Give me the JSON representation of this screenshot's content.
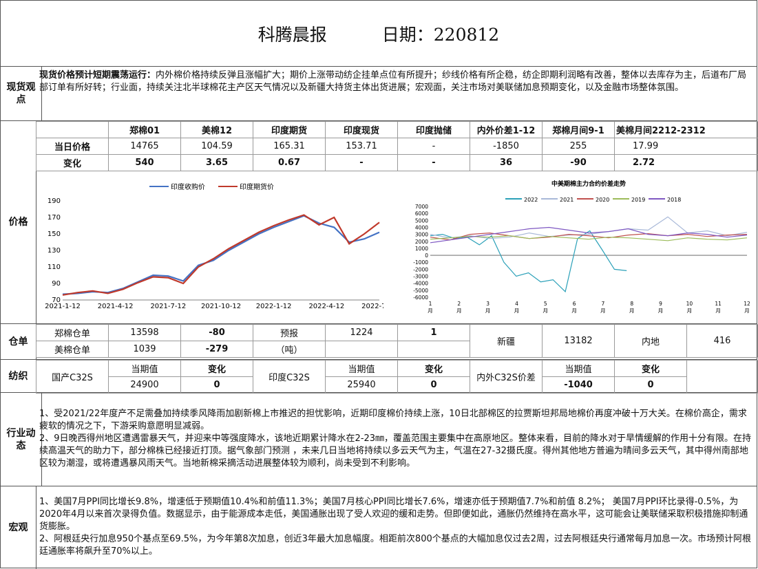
{
  "header": {
    "title": "科腾晨报",
    "date_label": "日期：220812"
  },
  "spot": {
    "label": "现货观点",
    "bold": "现货价格预计短期震荡运行：",
    "text": "内外棉价格持续反弹且涨幅扩大；期价上涨带动纺企挂单点位有所提升；纱线价格有所企稳，纺企即期利润略有改善，整体以去库存为主，后道布厂局部订单有所好转；行业面，持续关注北半球棉花主产区天气情况以及新疆大持货主体出货进展；宏观面，关注市场对美联储加息预期变化，以及金融市场整体氛围。"
  },
  "price": {
    "label": "价格",
    "headers": [
      "郑棉01",
      "美棉12",
      "印度期货",
      "印度现货",
      "印度抛储",
      "内外价差1-12",
      "郑棉月间9-1",
      "美棉月间2212-2312"
    ],
    "today_label": "当日价格",
    "today": [
      "14765",
      "104.59",
      "165.31",
      "153.71",
      "-",
      "-1850",
      "255",
      "17.99"
    ],
    "change_label": "变化",
    "change": [
      "540",
      "3.65",
      "0.67",
      "-",
      "-",
      "36",
      "-90",
      "2.72"
    ]
  },
  "chart_data": [
    {
      "type": "line",
      "title": "",
      "series": [
        {
          "name": "印度收购价",
          "color": "#4472c4",
          "values": [
            77,
            78,
            80,
            79,
            84,
            92,
            100,
            99,
            93,
            112,
            118,
            130,
            140,
            150,
            158,
            165,
            172,
            163,
            158,
            140,
            144,
            152
          ]
        },
        {
          "name": "印度期货价",
          "color": "#c0392b",
          "values": [
            76,
            79,
            81,
            78,
            83,
            91,
            98,
            97,
            90,
            110,
            120,
            132,
            142,
            152,
            160,
            167,
            173,
            161,
            170,
            138,
            150,
            164
          ]
        }
      ],
      "x_ticks": [
        "2021-1-12",
        "2021-4-12",
        "2021-7-12",
        "2021-10-12",
        "2022-1-12",
        "2022-4-12",
        "2022-7-12"
      ],
      "ylim": [
        70,
        190
      ],
      "y_ticks": [
        70,
        90,
        110,
        130,
        150,
        170,
        190
      ]
    },
    {
      "type": "line",
      "title": "中美期棉主力合约价差走势",
      "series": [
        {
          "name": "2022",
          "color": "#2aa0b8",
          "values": [
            2800,
            3000,
            2400,
            2600,
            1500,
            2800,
            -1000,
            -3000,
            -2500,
            -3800,
            -3500,
            -5200,
            2400,
            3500,
            800,
            -2000,
            -2200
          ]
        },
        {
          "name": "2021",
          "color": "#a8b8d8",
          "values": [
            3000,
            2500,
            2800,
            2400,
            2600,
            3200,
            2700,
            2900,
            3000,
            3400,
            3800,
            3600,
            5500,
            3200,
            3500,
            2800,
            3300
          ]
        },
        {
          "name": "2020",
          "color": "#c0504d",
          "values": [
            2600,
            2200,
            3000,
            3200,
            2800,
            2400,
            2600,
            3000,
            2800,
            2500,
            2900,
            3100,
            2800,
            3000,
            2700,
            2900,
            3000
          ]
        },
        {
          "name": "2019",
          "color": "#9bbb59",
          "values": [
            2300,
            2500,
            2700,
            2600,
            2800,
            2400,
            2700,
            2500,
            2300,
            2600,
            2500,
            2300,
            2100,
            2500,
            2300,
            2200,
            2500
          ]
        },
        {
          "name": "2018",
          "color": "#7e57c2",
          "values": [
            1800,
            2200,
            2600,
            3000,
            3400,
            3800,
            4000,
            3600,
            3200,
            3400,
            3800,
            3000,
            2800,
            3200,
            3000,
            2600,
            2900
          ]
        }
      ],
      "x_ticks": [
        "1\n月",
        "2\n月",
        "3\n月",
        "4\n月",
        "5\n月",
        "6\n月",
        "7\n月",
        "8\n月",
        "9\n月",
        "10\n月",
        "11\n月",
        "12\n月"
      ],
      "ylim": [
        -6000,
        7000
      ],
      "y_ticks": [
        7000,
        6000,
        5000,
        4000,
        3000,
        2000,
        1000,
        0,
        -1000,
        -2000,
        -3000,
        -4000,
        -5000,
        -6000
      ]
    }
  ],
  "warehouse": {
    "label": "仓单",
    "zheng_label": "郑棉仓单",
    "zheng_value": "13598",
    "zheng_change": "-80",
    "forecast_label": "预报",
    "forecast_value": "1224",
    "forecast_change": "1",
    "xinjiang_label": "新疆",
    "xinjiang_value": "13182",
    "neidi_label": "内地",
    "neidi_value": "416",
    "us_label": "美棉仓单",
    "us_value": "1039",
    "us_change": "-279",
    "unit": "（吨）"
  },
  "yarn": {
    "label": "纺织",
    "current": "当期值",
    "change": "变化",
    "domestic_label": "国产C32S",
    "domestic_value": "24900",
    "domestic_change": "0",
    "india_label": "印度C32S",
    "india_value": "25940",
    "india_change": "0",
    "spread_label": "内外C32S价差",
    "spread_value": "-1040",
    "spread_change": "0"
  },
  "industry": {
    "label": "行业动态",
    "p1": "1、受2021/22年度产不足需叠加持续季风降雨加剧新棉上市推迟的担忧影响，近期印度棉价持续上涨，10日北部棉区的拉贾斯坦邦局地棉价再度冲破十万大关。在棉价高企，需求疲软的情况之下，下游采购意愿明显减弱。",
    "p2": "2、9日晚西得州地区遭遇雷暴天气，并迎来中等强度降水，该地近期累计降水在2-23㎜，覆盖范围主要集中在高原地区。整体来看，目前的降水对于旱情缓解的作用十分有限。在持续高温天气的助力下，部分棉株已经接近打顶。据气象部门预测 ，未来几日当地将持续以多云天气为主，气温在27-32摄氏度。得州其他地方普遍为晴间多云天气，其中得州南部地区较为潮湿，或将遭遇暴风雨天气。当地新棉采摘活动进展整体较为顺利，尚未受到不利影响。"
  },
  "macro": {
    "label": "宏观",
    "p1": "1、美国7月PPI同比增长9.8%，增速低于预期值10.4%和前值11.3%；美国7月核心PPI同比增长7.6%，增速亦低于预期值7.7%和前值 8.2%； 美国7月PPI环比录得-0.5%，为2020年4月以来首次录得负值。数据显示，由于能源成本走低，美国通胀出现了受人欢迎的缓和走势。但即便如此，通胀仍然维持在高水平，这可能会让美联储采取积极措施抑制通货膨胀。",
    "p2": "2、阿根廷央行加息950个基点至69.5%，为今年第8次加息，创近3年最大加息幅度。相距前次800个基点的大幅加息仅过去2周，过去阿根廷央行通常每月加息一次。市场预计阿根廷通胀率将飙升至70%以上。"
  }
}
